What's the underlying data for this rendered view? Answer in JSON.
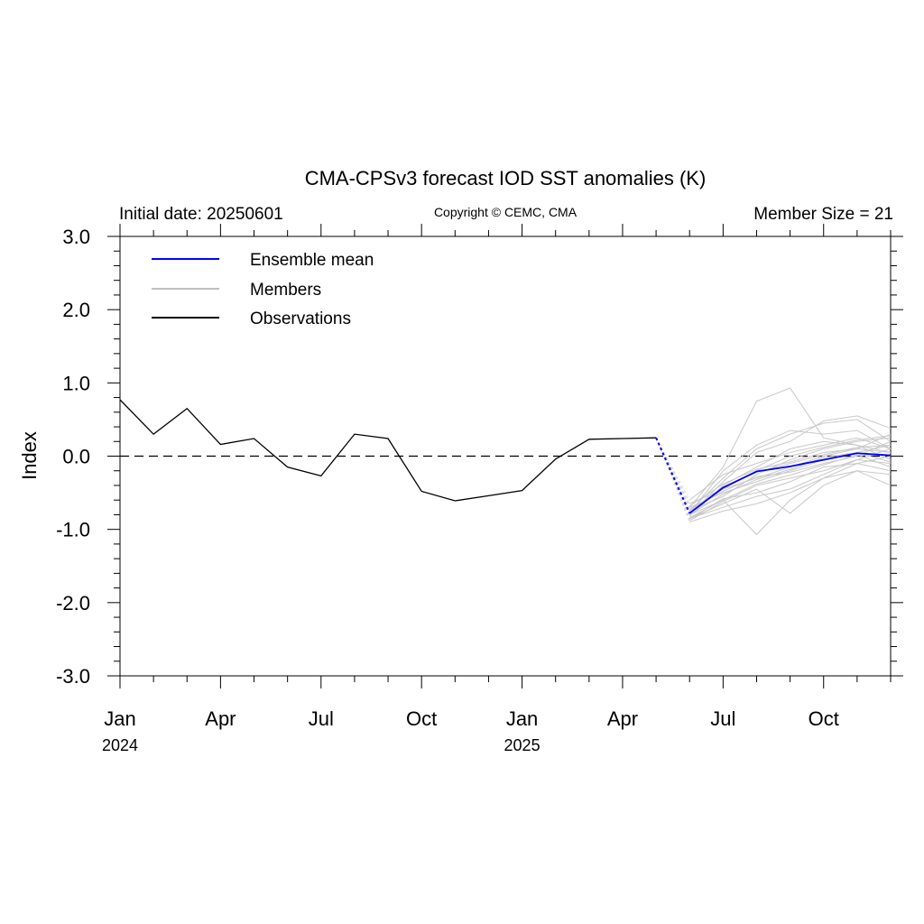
{
  "chart_data": {
    "type": "line",
    "title": "CMA-CPSv3 forecast IOD SST anomalies (K)",
    "left_note": "Initial date: 20250601",
    "center_note": "Copyright © CEMC, CMA",
    "right_note": "Member Size = 21",
    "ylabel": "Index",
    "ylim": [
      -3,
      3
    ],
    "yticks": [
      {
        "value": 3,
        "label": "3.0"
      },
      {
        "value": 2,
        "label": "2.0"
      },
      {
        "value": 1,
        "label": "1.0"
      },
      {
        "value": 0,
        "label": "0.0"
      },
      {
        "value": -1,
        "label": "-1.0"
      },
      {
        "value": -2,
        "label": "-2.0"
      },
      {
        "value": -3,
        "label": "-3.0"
      }
    ],
    "x_range": [
      "2024-01",
      "2025-12"
    ],
    "xticks": [
      {
        "month": "2024-01",
        "label": "Jan",
        "year": "2024"
      },
      {
        "month": "2024-04",
        "label": "Apr"
      },
      {
        "month": "2024-07",
        "label": "Jul"
      },
      {
        "month": "2024-10",
        "label": "Oct"
      },
      {
        "month": "2025-01",
        "label": "Jan",
        "year": "2025"
      },
      {
        "month": "2025-04",
        "label": "Apr"
      },
      {
        "month": "2025-07",
        "label": "Jul"
      },
      {
        "month": "2025-10",
        "label": "Oct"
      }
    ],
    "zero_line": "dashed",
    "grid": false,
    "legend": {
      "placement": "top-left",
      "entries": [
        {
          "label": "Ensemble mean",
          "color": "#0000ff"
        },
        {
          "label": "Members",
          "color": "#c0c0c0"
        },
        {
          "label": "Observations",
          "color": "#000000"
        }
      ]
    },
    "observations": {
      "months": [
        "2024-01",
        "2024-02",
        "2024-03",
        "2024-04",
        "2024-05",
        "2024-06",
        "2024-07",
        "2024-08",
        "2024-09",
        "2024-10",
        "2024-11",
        "2024-12",
        "2025-01",
        "2025-02",
        "2025-03",
        "2025-04",
        "2025-05"
      ],
      "values": [
        0.77,
        0.3,
        0.65,
        0.16,
        0.24,
        -0.15,
        -0.27,
        0.3,
        0.24,
        -0.48,
        -0.61,
        -0.54,
        -0.47,
        -0.04,
        0.23,
        0.24,
        0.25
      ]
    },
    "ensemble_mean": {
      "months": [
        "2025-06",
        "2025-07",
        "2025-08",
        "2025-09",
        "2025-10",
        "2025-11",
        "2025-12"
      ],
      "values": [
        -0.78,
        -0.43,
        -0.21,
        -0.14,
        -0.05,
        0.04,
        0.01
      ]
    },
    "members": [
      [
        -0.85,
        -0.7,
        -0.55,
        -0.45,
        -0.25,
        -0.05,
        0.1
      ],
      [
        -0.7,
        -0.15,
        0.75,
        0.93,
        0.25,
        0.15,
        0.05
      ],
      [
        -0.8,
        -0.6,
        -1.07,
        -0.6,
        -0.3,
        -0.1,
        0.0
      ],
      [
        -0.75,
        -0.3,
        0.1,
        0.3,
        0.45,
        0.5,
        0.2
      ],
      [
        -0.85,
        -0.65,
        -0.45,
        -0.78,
        -0.4,
        -0.2,
        -0.25
      ],
      [
        -0.65,
        -0.45,
        -0.3,
        -0.15,
        0.0,
        0.1,
        0.3
      ],
      [
        -0.8,
        -0.35,
        0.05,
        0.2,
        0.48,
        0.55,
        0.38
      ],
      [
        -0.9,
        -0.75,
        -0.65,
        -0.5,
        -0.3,
        -0.2,
        -0.4
      ],
      [
        -0.7,
        -0.5,
        -0.35,
        -0.2,
        -0.05,
        0.05,
        0.15
      ],
      [
        -0.6,
        -0.25,
        -0.1,
        0.05,
        0.15,
        0.25,
        0.1
      ],
      [
        -0.88,
        -0.62,
        -0.4,
        -0.3,
        -0.2,
        -0.05,
        -0.1
      ],
      [
        -0.75,
        -0.55,
        -0.25,
        -0.05,
        0.1,
        0.2,
        0.25
      ],
      [
        -0.82,
        -0.4,
        -0.15,
        0.1,
        0.2,
        0.15,
        -0.05
      ],
      [
        -0.72,
        -0.48,
        -0.28,
        -0.22,
        -0.1,
        0.0,
        0.2
      ],
      [
        -0.78,
        -0.2,
        0.15,
        0.35,
        0.3,
        0.35,
        0.1
      ],
      [
        -0.86,
        -0.58,
        -0.5,
        -0.35,
        -0.15,
        -0.1,
        -0.2
      ],
      [
        -0.68,
        -0.38,
        -0.18,
        -0.08,
        0.05,
        0.1,
        0.05
      ],
      [
        -0.8,
        -0.52,
        -0.32,
        -0.18,
        -0.02,
        0.05,
        -0.08
      ],
      [
        -0.74,
        -0.45,
        -0.2,
        0.0,
        0.12,
        0.22,
        0.28
      ],
      [
        -0.84,
        -0.6,
        -0.38,
        -0.26,
        -0.12,
        0.02,
        -0.15
      ],
      [
        -0.76,
        -0.42,
        -0.22,
        -0.1,
        0.02,
        0.12,
        0.15
      ]
    ]
  }
}
